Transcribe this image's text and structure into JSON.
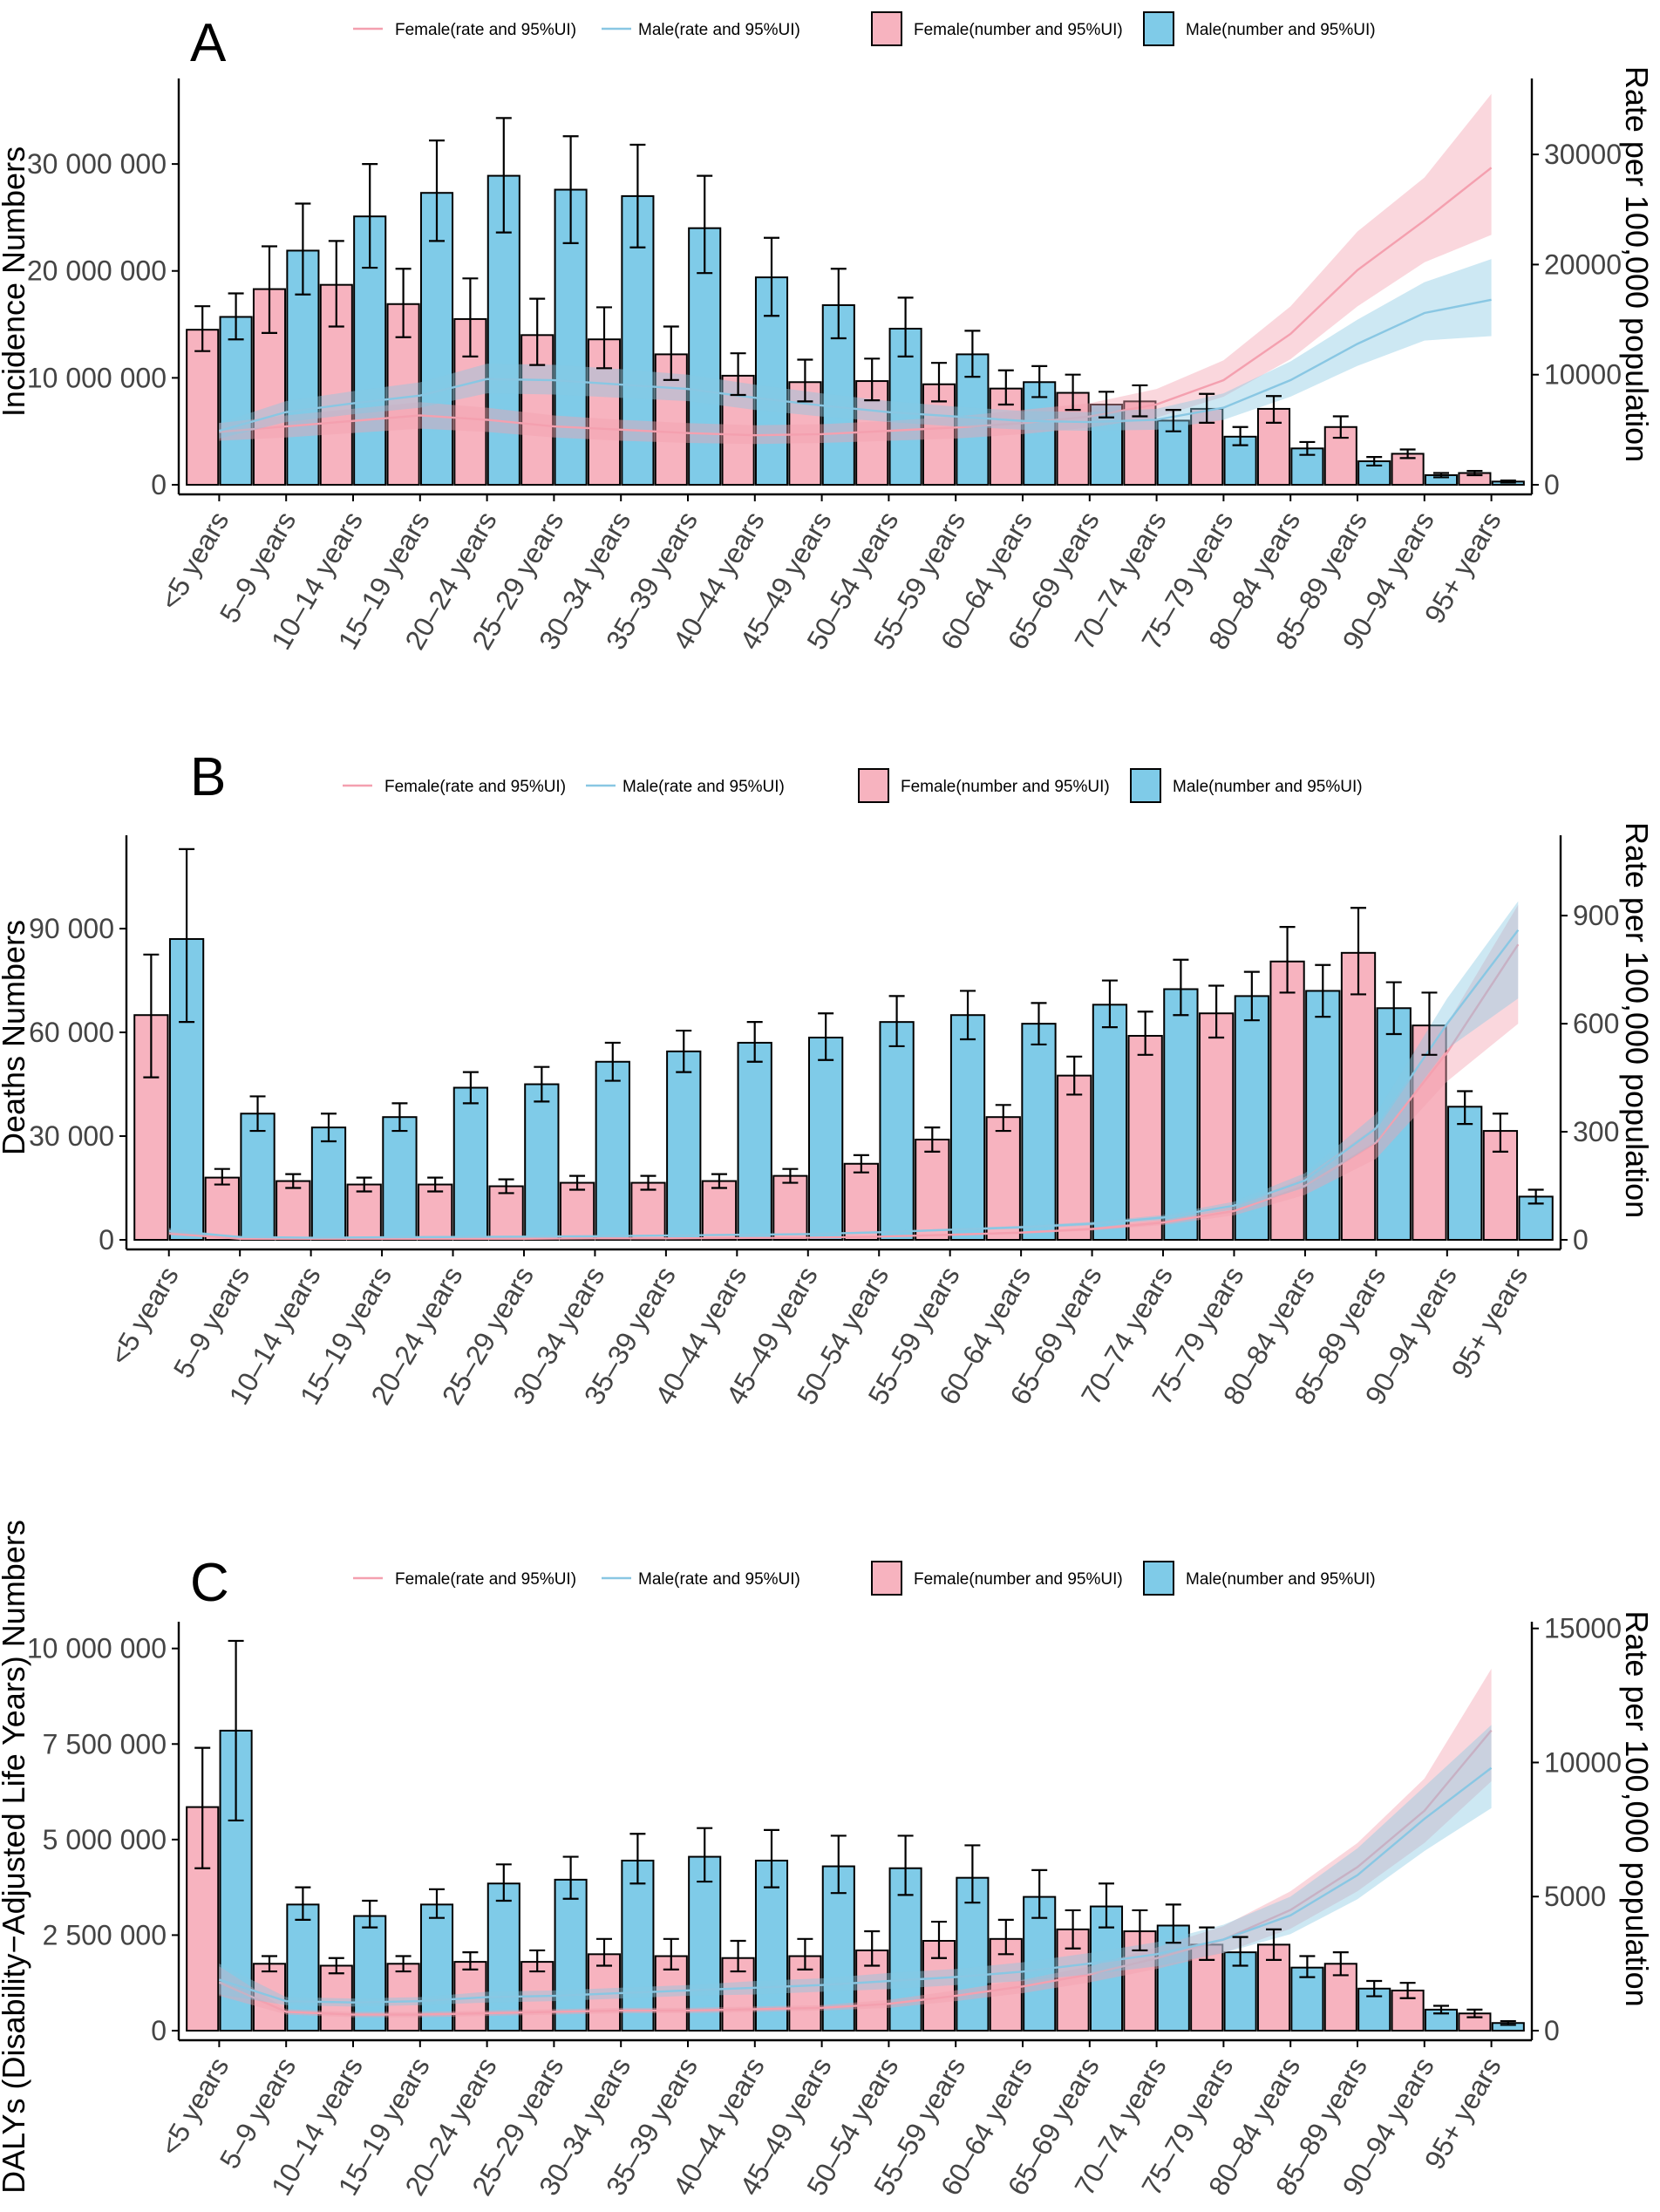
{
  "colors": {
    "female_bar": "#F7B3BF",
    "male_bar": "#7FCBE8",
    "female_line": "#F4A0AF",
    "male_line": "#89C7E3",
    "axis": "#000000"
  },
  "categories": [
    "<5 years",
    "5–9 years",
    "10–14 years",
    "15–19 years",
    "20–24 years",
    "25–29 years",
    "30–34 years",
    "35–39 years",
    "40–44 years",
    "45–49 years",
    "50–54 years",
    "55–59 years",
    "60–64 years",
    "65–69 years",
    "70–74 years",
    "75–79 years",
    "80–84 years",
    "85–89 years",
    "90–94 years",
    "95+ years"
  ],
  "legend": {
    "female_rate": "Female(rate and 95%UI)",
    "male_rate": "Male(rate and 95%UI)",
    "female_number": "Female(number and 95%UI)",
    "male_number": "Male(number and 95%UI)"
  },
  "chart_data": [
    {
      "type": "bar",
      "panel": "A",
      "ylabel": "Incidence Numbers",
      "y2label": "Rate per 100,000 population",
      "ylim": [
        0,
        38000000
      ],
      "y2lim": [
        0,
        36900
      ],
      "yticks": [
        0,
        10000000,
        20000000,
        30000000
      ],
      "ytick_labels": [
        "0",
        "10 000 000",
        "20 000 000",
        "30 000 000"
      ],
      "y2ticks": [
        0,
        10000,
        20000,
        30000
      ],
      "y2tick_labels": [
        "0",
        "10000",
        "20000",
        "30000"
      ],
      "series": [
        {
          "name": "Female(number and 95%UI)",
          "values": [
            14500000,
            18300000,
            18700000,
            16900000,
            15500000,
            14000000,
            13600000,
            12200000,
            10200000,
            9600000,
            9700000,
            9400000,
            9000000,
            8600000,
            7800000,
            7100000,
            7100000,
            5400000,
            2900000,
            1100000
          ],
          "lower": [
            12500000,
            14200000,
            14800000,
            13800000,
            12000000,
            11200000,
            10900000,
            9800000,
            8400000,
            7800000,
            7900000,
            7800000,
            7500000,
            7000000,
            6400000,
            5800000,
            5800000,
            4400000,
            2500000,
            900000
          ],
          "upper": [
            16700000,
            22300000,
            22800000,
            20200000,
            19300000,
            17400000,
            16600000,
            14800000,
            12300000,
            11700000,
            11800000,
            11400000,
            10700000,
            10300000,
            9300000,
            8500000,
            8300000,
            6400000,
            3300000,
            1300000
          ]
        },
        {
          "name": "Male(number and 95%UI)",
          "values": [
            15700000,
            21900000,
            25100000,
            27300000,
            28900000,
            27600000,
            27000000,
            24000000,
            19400000,
            16800000,
            14600000,
            12200000,
            9600000,
            7500000,
            6000000,
            4500000,
            3400000,
            2200000,
            900000,
            300000
          ],
          "lower": [
            13600000,
            17800000,
            20300000,
            22800000,
            23600000,
            22600000,
            22200000,
            19800000,
            15800000,
            13700000,
            12000000,
            10100000,
            8200000,
            6300000,
            5000000,
            3700000,
            2800000,
            1800000,
            700000,
            200000
          ],
          "upper": [
            17900000,
            26300000,
            30000000,
            32200000,
            34300000,
            32600000,
            31800000,
            28900000,
            23100000,
            20200000,
            17500000,
            14400000,
            11100000,
            8700000,
            7000000,
            5400000,
            4000000,
            2600000,
            1100000,
            400000
          ]
        },
        {
          "name": "Female(rate and 95%UI)",
          "values": [
            4800,
            5300,
            5800,
            6300,
            5900,
            5300,
            5000,
            4700,
            4500,
            4600,
            4900,
            5200,
            5600,
            6200,
            7300,
            9500,
            13700,
            19500,
            24000,
            28800
          ],
          "lower": [
            4000,
            4300,
            4700,
            5100,
            4800,
            4300,
            4000,
            3800,
            3700,
            3800,
            4000,
            4200,
            4600,
            5200,
            6100,
            8000,
            11400,
            16200,
            20200,
            22700
          ],
          "upper": [
            5600,
            6300,
            6900,
            7500,
            7000,
            6300,
            5900,
            5600,
            5400,
            5500,
            5800,
            6200,
            6800,
            7400,
            8700,
            11300,
            16200,
            23000,
            27900,
            35500
          ]
        },
        {
          "name": "Male(rate and 95%UI)",
          "values": [
            4900,
            6600,
            7400,
            8100,
            9600,
            9500,
            9100,
            8700,
            7900,
            7200,
            6600,
            6200,
            5800,
            5700,
            5900,
            7000,
            9500,
            12800,
            15600,
            16800
          ],
          "lower": [
            4200,
            5700,
            6400,
            7000,
            8300,
            8200,
            7900,
            7600,
            6800,
            6200,
            5700,
            5300,
            5000,
            4900,
            5000,
            5900,
            8000,
            10800,
            13100,
            13500
          ],
          "upper": [
            5600,
            7600,
            8500,
            9300,
            11000,
            10900,
            10500,
            10000,
            9100,
            8300,
            7600,
            7100,
            6700,
            6600,
            6900,
            8300,
            11200,
            15000,
            18400,
            20500
          ]
        }
      ]
    },
    {
      "type": "bar",
      "panel": "B",
      "ylabel": "Deaths Numbers",
      "y2label": "Rate per 100,000 population",
      "ylim": [
        0,
        117000
      ],
      "y2lim": [
        0,
        1123
      ],
      "yticks": [
        0,
        30000,
        60000,
        90000
      ],
      "ytick_labels": [
        "0",
        "30 000",
        "60 000",
        "90 000"
      ],
      "y2ticks": [
        0,
        300,
        600,
        900
      ],
      "y2tick_labels": [
        "0",
        "300",
        "600",
        "900"
      ],
      "series": [
        {
          "name": "Female(number and 95%UI)",
          "values": [
            65000,
            18000,
            17000,
            16000,
            16000,
            15500,
            16500,
            16500,
            17000,
            18500,
            22000,
            29000,
            35500,
            47500,
            59000,
            65500,
            80500,
            83000,
            62000,
            31500
          ],
          "lower": [
            47000,
            16000,
            15000,
            14000,
            14000,
            13500,
            14500,
            14500,
            15000,
            16500,
            19500,
            25500,
            31500,
            42000,
            53500,
            58500,
            71500,
            71000,
            53500,
            25500
          ],
          "upper": [
            82500,
            20500,
            19000,
            18000,
            18000,
            17500,
            18500,
            18500,
            19000,
            20500,
            24500,
            32500,
            39000,
            53000,
            66000,
            73500,
            90500,
            96000,
            71500,
            36500
          ]
        },
        {
          "name": "Male(number and 95%UI)",
          "values": [
            87000,
            36500,
            32500,
            35500,
            44000,
            45000,
            51500,
            54500,
            57000,
            58500,
            63000,
            65000,
            62500,
            68000,
            72500,
            70500,
            72000,
            67000,
            38500,
            12500
          ],
          "lower": [
            63000,
            31500,
            28500,
            31500,
            39500,
            40000,
            46000,
            48500,
            51500,
            52000,
            56000,
            58000,
            56500,
            61500,
            65000,
            63500,
            64500,
            59500,
            33500,
            10500
          ],
          "upper": [
            113000,
            41500,
            36500,
            39500,
            48500,
            50000,
            57000,
            60500,
            63000,
            65500,
            70500,
            72000,
            68500,
            75000,
            81000,
            77500,
            79500,
            74500,
            43000,
            14500
          ]
        },
        {
          "name": "Female(rate and 95%UI)",
          "values": [
            18,
            3,
            3,
            3,
            3,
            3,
            4,
            4,
            5,
            6,
            9,
            14,
            20,
            30,
            48,
            80,
            150,
            270,
            520,
            820
          ],
          "lower": [
            13,
            2,
            2,
            2,
            2,
            2,
            3,
            3,
            4,
            5,
            7,
            11,
            17,
            26,
            41,
            68,
            125,
            225,
            440,
            600
          ],
          "upper": [
            24,
            4,
            4,
            4,
            4,
            4,
            5,
            5,
            6,
            7,
            11,
            17,
            23,
            34,
            55,
            92,
            175,
            315,
            600,
            930
          ]
        },
        {
          "name": "Male(rate and 95%UI)",
          "values": [
            25,
            8,
            6,
            7,
            8,
            9,
            10,
            12,
            14,
            16,
            21,
            28,
            35,
            45,
            62,
            95,
            165,
            310,
            600,
            860
          ],
          "lower": [
            18,
            7,
            5,
            6,
            7,
            8,
            9,
            10,
            12,
            14,
            18,
            25,
            31,
            40,
            55,
            84,
            145,
            270,
            530,
            670
          ],
          "upper": [
            33,
            9,
            7,
            8,
            9,
            10,
            11,
            13,
            15,
            18,
            24,
            31,
            39,
            50,
            69,
            106,
            185,
            350,
            670,
            940
          ]
        }
      ]
    },
    {
      "type": "bar",
      "panel": "C",
      "ylabel": "DALYs (Disability−Adjusted Life Years) Numbers",
      "y2label": "Rate per 100,000 population",
      "ylim": [
        0,
        10700000
      ],
      "y2lim": [
        0,
        15250
      ],
      "yticks": [
        0,
        2500000,
        5000000,
        7500000,
        10000000
      ],
      "ytick_labels": [
        "0",
        "2 500 000",
        "5 000 000",
        "7 500 000",
        "10 000 000"
      ],
      "y2ticks": [
        0,
        5000,
        10000,
        15000
      ],
      "y2tick_labels": [
        "0",
        "5000",
        "10000",
        "15000"
      ],
      "series": [
        {
          "name": "Female(number and 95%UI)",
          "values": [
            5850000,
            1750000,
            1700000,
            1750000,
            1800000,
            1800000,
            2000000,
            1950000,
            1900000,
            1950000,
            2100000,
            2350000,
            2400000,
            2650000,
            2600000,
            2250000,
            2250000,
            1750000,
            1050000,
            450000
          ],
          "lower": [
            4250000,
            1550000,
            1500000,
            1550000,
            1600000,
            1550000,
            1700000,
            1600000,
            1550000,
            1600000,
            1700000,
            1900000,
            2000000,
            2150000,
            2100000,
            1850000,
            1850000,
            1450000,
            850000,
            350000
          ],
          "upper": [
            7400000,
            1950000,
            1900000,
            1950000,
            2050000,
            2100000,
            2400000,
            2400000,
            2350000,
            2400000,
            2600000,
            2850000,
            2900000,
            3150000,
            3150000,
            2700000,
            2650000,
            2050000,
            1250000,
            550000
          ]
        },
        {
          "name": "Male(number and 95%UI)",
          "values": [
            7850000,
            3300000,
            3000000,
            3300000,
            3850000,
            3950000,
            4450000,
            4550000,
            4450000,
            4300000,
            4250000,
            4000000,
            3500000,
            3250000,
            2750000,
            2050000,
            1650000,
            1100000,
            550000,
            200000
          ],
          "lower": [
            5500000,
            2900000,
            2700000,
            2950000,
            3400000,
            3450000,
            3850000,
            3900000,
            3750000,
            3600000,
            3550000,
            3350000,
            2950000,
            2700000,
            2300000,
            1700000,
            1400000,
            900000,
            450000,
            150000
          ],
          "upper": [
            10200000,
            3750000,
            3400000,
            3700000,
            4350000,
            4550000,
            5150000,
            5300000,
            5250000,
            5100000,
            5100000,
            4850000,
            4200000,
            3850000,
            3300000,
            2450000,
            1950000,
            1300000,
            650000,
            250000
          ]
        },
        {
          "name": "Female(rate and 95%UI)",
          "values": [
            1800,
            700,
            600,
            600,
            650,
            700,
            750,
            750,
            800,
            850,
            1000,
            1300,
            1650,
            2100,
            2700,
            3400,
            4500,
            6100,
            8200,
            11200
          ],
          "lower": [
            1300,
            600,
            500,
            500,
            550,
            600,
            650,
            650,
            700,
            750,
            850,
            1100,
            1400,
            1800,
            2300,
            2900,
            3800,
            5200,
            7000,
            9300
          ],
          "upper": [
            2400,
            800,
            700,
            700,
            750,
            800,
            850,
            850,
            900,
            950,
            1150,
            1500,
            1900,
            2400,
            3100,
            3900,
            5200,
            7000,
            9400,
            13500
          ]
        },
        {
          "name": "Male(rate and 95%UI)",
          "values": [
            1900,
            1100,
            1050,
            1100,
            1250,
            1300,
            1400,
            1500,
            1600,
            1700,
            1850,
            2000,
            2200,
            2500,
            2850,
            3400,
            4300,
            5800,
            7900,
            9800
          ],
          "lower": [
            1350,
            950,
            900,
            950,
            1050,
            1100,
            1200,
            1300,
            1350,
            1450,
            1550,
            1700,
            1850,
            2100,
            2400,
            2900,
            3600,
            4900,
            6700,
            8300
          ],
          "upper": [
            2500,
            1250,
            1200,
            1250,
            1450,
            1500,
            1600,
            1700,
            1850,
            1950,
            2150,
            2300,
            2550,
            2900,
            3300,
            3950,
            5000,
            6800,
            9100,
            11400
          ]
        }
      ]
    }
  ]
}
